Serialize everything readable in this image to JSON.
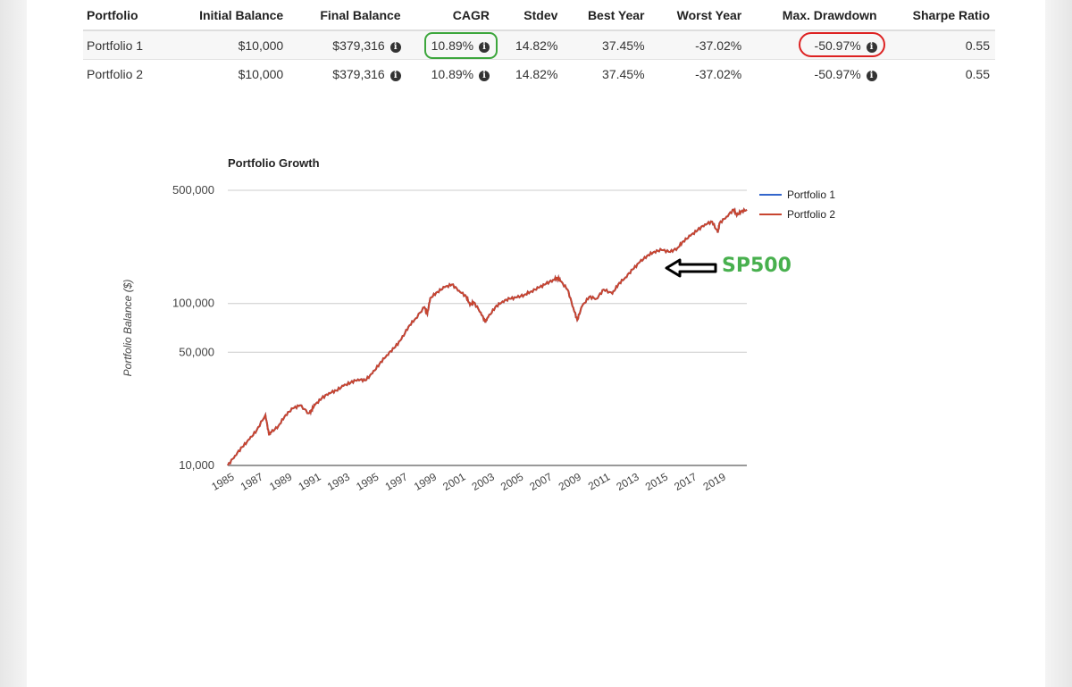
{
  "table": {
    "headers": [
      "Portfolio",
      "Initial Balance",
      "Final Balance",
      "CAGR",
      "Stdev",
      "Best Year",
      "Worst Year",
      "Max. Drawdown",
      "Sharpe Ratio"
    ],
    "rows": [
      {
        "portfolio": "Portfolio 1",
        "initial": "$10,000",
        "final": "$379,316",
        "cagr": "10.89%",
        "stdev": "14.82%",
        "best": "37.45%",
        "worst": "-37.02%",
        "drawdown": "-50.97%",
        "sharpe": "0.55"
      },
      {
        "portfolio": "Portfolio 2",
        "initial": "$10,000",
        "final": "$379,316",
        "cagr": "10.89%",
        "stdev": "14.82%",
        "best": "37.45%",
        "worst": "-37.02%",
        "drawdown": "-50.97%",
        "sharpe": "0.55"
      }
    ],
    "info_icon": "info-circle-icon"
  },
  "annotation": {
    "text": "SP500",
    "text_color": "#48b04e",
    "arrow_icon": "left-arrow-icon",
    "cagr_highlight_color": "#3ca63c",
    "drawdown_highlight_color": "#dd2222"
  },
  "chart_data": {
    "type": "line",
    "title": "Portfolio Growth",
    "ylabel": "Portfolio Balance ($)",
    "xlabel": "",
    "yscale": "log",
    "ylim": [
      10000,
      500000
    ],
    "y_ticks": [
      10000,
      50000,
      100000,
      500000
    ],
    "y_tick_labels": [
      "10,000",
      "50,000",
      "100,000",
      "500,000"
    ],
    "xlim": [
      1985,
      2020.9
    ],
    "x_ticks": [
      1985,
      1987,
      1989,
      1991,
      1993,
      1995,
      1997,
      1999,
      2001,
      2003,
      2005,
      2007,
      2009,
      2011,
      2013,
      2015,
      2017,
      2019
    ],
    "x_tick_labels": [
      "1985",
      "1987",
      "1989",
      "1991",
      "1993",
      "1995",
      "1997",
      "1999",
      "2001",
      "2003",
      "2005",
      "2007",
      "2009",
      "2011",
      "2013",
      "2015",
      "2017",
      "2019"
    ],
    "grid": true,
    "legend_position": "right",
    "x": [
      1985.0,
      1985.5,
      1986.0,
      1986.5,
      1987.0,
      1987.6,
      1987.85,
      1988.0,
      1988.5,
      1989.0,
      1989.5,
      1990.0,
      1990.6,
      1990.8,
      1991.0,
      1991.5,
      1992.0,
      1992.5,
      1993.0,
      1993.5,
      1994.0,
      1994.5,
      1995.0,
      1995.5,
      1996.0,
      1996.5,
      1997.0,
      1997.5,
      1998.0,
      1998.6,
      1998.8,
      1999.0,
      1999.5,
      2000.0,
      2000.5,
      2001.0,
      2001.5,
      2001.75,
      2002.0,
      2002.5,
      2002.8,
      2003.0,
      2003.5,
      2004.0,
      2004.5,
      2005.0,
      2005.5,
      2006.0,
      2006.5,
      2007.0,
      2007.5,
      2007.8,
      2008.0,
      2008.5,
      2008.9,
      2009.17,
      2009.5,
      2010.0,
      2010.5,
      2011.0,
      2011.6,
      2012.0,
      2012.5,
      2013.0,
      2013.5,
      2014.0,
      2014.5,
      2015.0,
      2015.6,
      2016.1,
      2016.5,
      2017.0,
      2017.5,
      2018.0,
      2018.5,
      2018.9,
      2019.0,
      2019.5,
      2020.0,
      2020.2,
      2020.5,
      2020.9
    ],
    "series": [
      {
        "name": "Portfolio 1",
        "color": "#3366cc",
        "values": [
          10000,
          11500,
          13000,
          14500,
          16500,
          20500,
          15500,
          16000,
          17500,
          20500,
          22500,
          23500,
          21000,
          22000,
          23500,
          26000,
          28000,
          29000,
          31000,
          32500,
          34000,
          33500,
          37000,
          42500,
          48000,
          53000,
          60000,
          72000,
          81000,
          95000,
          86000,
          108000,
          118000,
          126000,
          131000,
          120000,
          110000,
          98000,
          102000,
          88000,
          77000,
          82000,
          95000,
          103000,
          107000,
          109000,
          113000,
          119000,
          125000,
          132000,
          140000,
          144000,
          138000,
          122000,
          94000,
          79000,
          96000,
          110000,
          107000,
          122000,
          115000,
          131000,
          145000,
          162000,
          180000,
          197000,
          209000,
          214000,
          208000,
          220000,
          242000,
          262000,
          284000,
          308000,
          320000,
          274000,
          312000,
          344000,
          380000,
          350000,
          370000,
          379316
        ]
      },
      {
        "name": "Portfolio 2",
        "color": "#c8452f",
        "values": [
          10000,
          11500,
          13000,
          14500,
          16500,
          20500,
          15500,
          16000,
          17500,
          20500,
          22500,
          23500,
          21000,
          22000,
          23500,
          26000,
          28000,
          29000,
          31000,
          32500,
          34000,
          33500,
          37000,
          42500,
          48000,
          53000,
          60000,
          72000,
          81000,
          95000,
          86000,
          108000,
          118000,
          126000,
          131000,
          120000,
          110000,
          98000,
          102000,
          88000,
          77000,
          82000,
          95000,
          103000,
          107000,
          109000,
          113000,
          119000,
          125000,
          132000,
          140000,
          144000,
          138000,
          122000,
          94000,
          79000,
          96000,
          110000,
          107000,
          122000,
          115000,
          131000,
          145000,
          162000,
          180000,
          197000,
          209000,
          214000,
          208000,
          220000,
          242000,
          262000,
          284000,
          308000,
          320000,
          274000,
          312000,
          344000,
          380000,
          350000,
          370000,
          379316
        ]
      }
    ]
  }
}
